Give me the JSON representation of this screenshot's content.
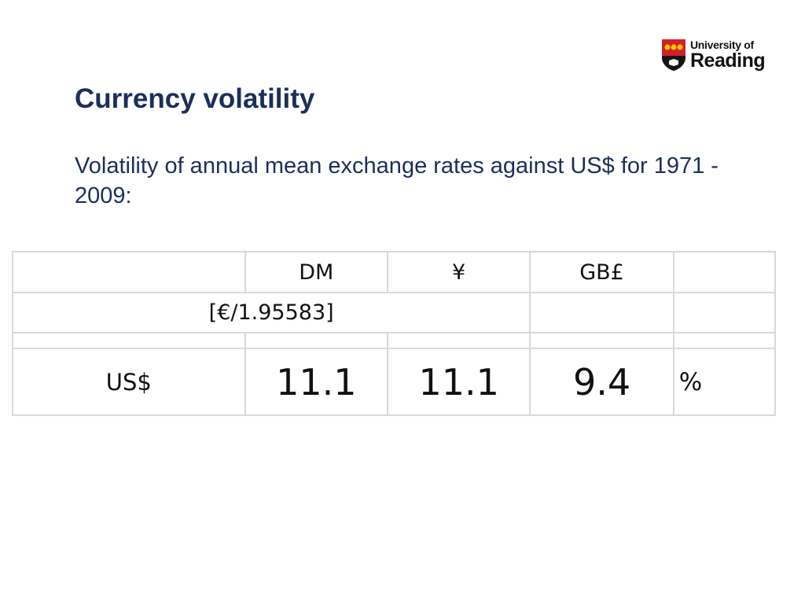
{
  "logo": {
    "line1": "University of",
    "line2": "Reading",
    "colors": {
      "shield_red": "#d11f2d",
      "shield_black": "#141414",
      "shield_gold": "#f2c200"
    }
  },
  "slide": {
    "title": "Currency volatility",
    "subtitle": "Volatility of annual mean exchange rates against US$ for 1971 - 2009:",
    "text_color": "#1b2f5a"
  },
  "table": {
    "columns": [
      "",
      "DM",
      "¥",
      "GB£",
      ""
    ],
    "conversion_note": "[€/1.95583]",
    "rows": [
      {
        "label": "US$",
        "values": [
          "11.1",
          "11.1",
          "9.4"
        ],
        "unit": "%"
      }
    ]
  }
}
